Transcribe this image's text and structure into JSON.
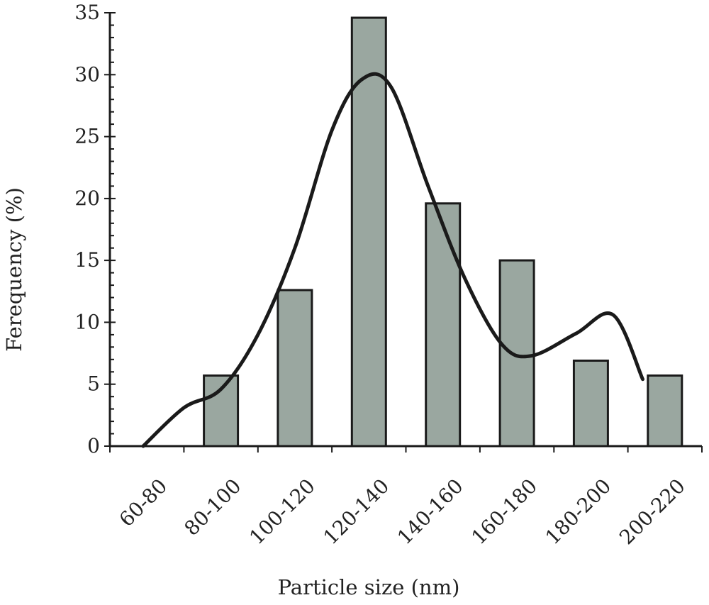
{
  "chart_data": {
    "type": "bar",
    "title": "",
    "xlabel": "Particle size (nm)",
    "ylabel": "Ferequency (%)",
    "categories": [
      "60-80",
      "80-100",
      "100-120",
      "120-140",
      "140-160",
      "160-180",
      "180-200",
      "200-220"
    ],
    "values": [
      0,
      5.7,
      12.6,
      34.6,
      19.6,
      15,
      6.9,
      5.7
    ],
    "ylim": [
      0,
      35
    ],
    "yticks": [
      "0",
      "5",
      "10",
      "15",
      "20",
      "25",
      "30",
      "35"
    ],
    "grid": false,
    "legend": "none",
    "trend_line": {
      "type": "smoothed",
      "x": [
        0.45,
        1.0,
        1.5,
        2.0,
        2.5,
        3.0,
        3.4,
        3.8,
        4.3,
        4.8,
        5.3,
        5.7,
        6.3,
        6.8,
        7.2
      ],
      "y": [
        0,
        3.1,
        4.6,
        9.0,
        16.0,
        25.5,
        29.6,
        29.0,
        21.0,
        13.5,
        8.2,
        7.3,
        9.1,
        10.6,
        5.4
      ]
    },
    "colors": {
      "bar_fill": "#9aa7a0",
      "bar_stroke": "#1a1a1a",
      "curve": "#1a1a1a"
    }
  }
}
